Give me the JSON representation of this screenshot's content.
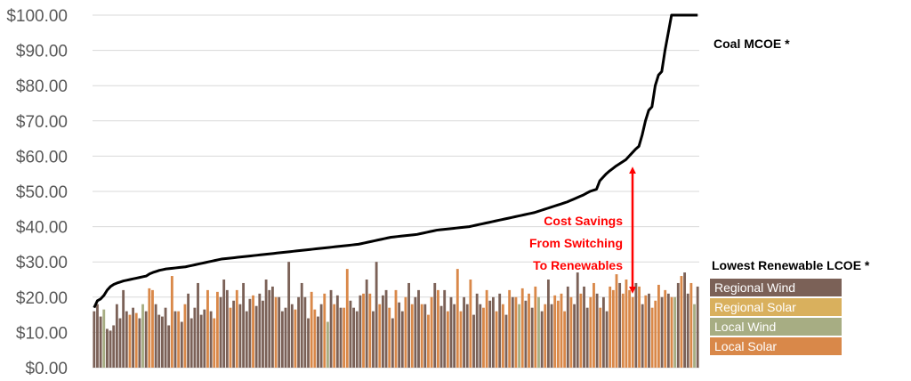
{
  "chart_data": {
    "type": "bar",
    "title": "",
    "xlabel": "",
    "ylabel": "",
    "ylim": [
      0,
      100
    ],
    "y_tick_labels": [
      "$0.00",
      "$10.00",
      "$20.00",
      "$30.00",
      "$40.00",
      "$50.00",
      "$60.00",
      "$70.00",
      "$80.00",
      "$90.00",
      "$100.00"
    ],
    "grid": "horizontal",
    "line_series_label": "Coal MCOE *",
    "bar_legend_title": "Lowest Renewable LCOE *",
    "legend_position": "right",
    "annotation": {
      "lines": [
        "Cost Savings",
        "From Switching",
        "To Renewables"
      ],
      "color": "#ff0000",
      "arrow_from": 22,
      "arrow_to": 56
    },
    "series_colors": {
      "Regional Wind": "#7b6157",
      "Regional Solar": "#d9b05d",
      "Local Wind": "#a7ad83",
      "Local Solar": "#d98849"
    },
    "legend": [
      "Regional Wind",
      "Regional Solar",
      "Local Wind",
      "Local Solar"
    ],
    "bar_values": [
      16.0,
      18.0,
      14.5,
      16.5,
      11.0,
      10.5,
      12.0,
      18.0,
      14.0,
      22.0,
      16.0,
      15.0,
      17.0,
      15.5,
      14.0,
      18.0,
      16.0,
      22.5,
      22.0,
      18.0,
      15.0,
      14.5,
      17.0,
      12.0,
      26.0,
      16.0,
      16.0,
      13.0,
      18.0,
      21.0,
      14.0,
      17.0,
      24.0,
      15.0,
      16.5,
      22.0,
      16.0,
      14.0,
      21.5,
      20.0,
      25.0,
      22.0,
      17.0,
      19.0,
      22.0,
      18.0,
      24.0,
      16.0,
      19.5,
      20.5,
      17.5,
      21.0,
      19.0,
      25.0,
      22.0,
      23.0,
      20.0,
      20.0,
      16.0,
      17.0,
      30.0,
      18.0,
      16.5,
      20.0,
      24.0,
      20.0,
      14.0,
      21.5,
      16.5,
      14.5,
      18.0,
      21.0,
      13.0,
      22.0,
      18.0,
      20.5,
      17.0,
      17.0,
      28.0,
      19.0,
      17.0,
      16.0,
      20.5,
      21.0,
      25.0,
      21.0,
      16.0,
      30.0,
      18.0,
      20.5,
      22.0,
      17.0,
      14.0,
      22.0,
      18.5,
      16.0,
      20.0,
      24.0,
      18.0,
      20.0,
      22.0,
      18.0,
      18.0,
      15.0,
      20.0,
      24.0,
      22.0,
      17.5,
      22.0,
      16.0,
      20.0,
      18.0,
      28.0,
      16.0,
      20.0,
      18.0,
      25.0,
      15.0,
      21.0,
      18.0,
      17.0,
      22.0,
      19.0,
      20.0,
      16.0,
      21.0,
      18.0,
      15.0,
      22.0,
      20.0,
      20.0,
      18.0,
      22.5,
      19.0,
      21.0,
      17.0,
      23.0,
      20.0,
      16.0,
      18.0,
      25.0,
      18.0,
      20.5,
      19.0,
      21.0,
      16.0,
      23.0,
      20.0,
      18.0,
      27.0,
      21.0,
      23.0,
      17.0,
      20.0,
      24.0,
      21.0,
      17.0,
      20.0,
      16.0,
      23.0,
      22.0,
      26.5,
      24.0,
      21.0,
      25.0,
      22.0,
      20.0,
      24.0,
      23.0,
      18.0,
      20.5,
      21.0,
      17.0,
      19.0,
      23.5,
      20.0,
      22.0,
      21.0,
      20.0,
      20.0,
      24.0,
      26.0,
      27.0,
      21.0,
      24.0,
      18.0,
      23.0
    ],
    "bar_types": [
      "Regional Wind",
      "Regional Wind",
      "Regional Wind",
      "Local Wind",
      "Regional Wind",
      "Regional Wind",
      "Regional Wind",
      "Regional Wind",
      "Regional Wind",
      "Regional Wind",
      "Regional Wind",
      "Local Solar",
      "Regional Wind",
      "Local Solar",
      "Regional Wind",
      "Local Wind",
      "Regional Wind",
      "Local Solar",
      "Local Solar",
      "Regional Wind",
      "Regional Wind",
      "Regional Wind",
      "Regional Wind",
      "Regional Wind",
      "Local Solar",
      "Regional Wind",
      "Local Solar",
      "Regional Wind",
      "Local Solar",
      "Regional Wind",
      "Regional Wind",
      "Regional Wind",
      "Regional Wind",
      "Regional Wind",
      "Regional Wind",
      "Local Solar",
      "Regional Wind",
      "Local Solar",
      "Local Solar",
      "Regional Wind",
      "Regional Wind",
      "Regional Wind",
      "Local Solar",
      "Regional Wind",
      "Local Solar",
      "Regional Wind",
      "Regional Wind",
      "Regional Wind",
      "Regional Wind",
      "Local Solar",
      "Regional Wind",
      "Regional Wind",
      "Regional Wind",
      "Regional Wind",
      "Regional Wind",
      "Regional Wind",
      "Local Solar",
      "Regional Wind",
      "Regional Wind",
      "Regional Wind",
      "Regional Wind",
      "Regional Wind",
      "Local Solar",
      "Regional Wind",
      "Regional Wind",
      "Regional Wind",
      "Regional Wind",
      "Local Solar",
      "Local Solar",
      "Regional Wind",
      "Regional Wind",
      "Local Solar",
      "Local Wind",
      "Regional Wind",
      "Local Solar",
      "Regional Wind",
      "Regional Wind",
      "Local Solar",
      "Local Solar",
      "Regional Wind",
      "Regional Wind",
      "Regional Wind",
      "Regional Wind",
      "Local Solar",
      "Regional Wind",
      "Local Solar",
      "Regional Wind",
      "Regional Wind",
      "Local Solar",
      "Regional Wind",
      "Regional Wind",
      "Local Solar",
      "Regional Wind",
      "Local Solar",
      "Regional Wind",
      "Regional Wind",
      "Local Solar",
      "Regional Wind",
      "Local Solar",
      "Regional Wind",
      "Regional Wind",
      "Local Solar",
      "Regional Wind",
      "Local Solar",
      "Local Solar",
      "Regional Wind",
      "Local Solar",
      "Regional Wind",
      "Regional Wind",
      "Local Solar",
      "Regional Wind",
      "Regional Wind",
      "Local Solar",
      "Local Solar",
      "Regional Wind",
      "Regional Wind",
      "Local Solar",
      "Regional Wind",
      "Regional Wind",
      "Regional Wind",
      "Local Solar",
      "Local Solar",
      "Regional Wind",
      "Regional Wind",
      "Local Solar",
      "Regional Wind",
      "Local Solar",
      "Regional Wind",
      "Local Solar",
      "Regional Wind",
      "Local Solar",
      "Local Wind",
      "Local Solar",
      "Regional Wind",
      "Local Solar",
      "Regional Wind",
      "Local Solar",
      "Local Wind",
      "Regional Wind",
      "Local Solar",
      "Regional Wind",
      "Regional Wind",
      "Local Solar",
      "Local Solar",
      "Local Solar",
      "Local Solar",
      "Regional Wind",
      "Local Solar",
      "Regional Wind",
      "Regional Wind",
      "Local Solar",
      "Regional Wind",
      "Regional Wind",
      "Local Solar",
      "Local Solar",
      "Regional Wind",
      "Local Solar",
      "Regional Wind",
      "Regional Wind",
      "Local Solar",
      "Local Solar",
      "Local Solar",
      "Regional Wind",
      "Local Solar",
      "Local Solar",
      "Local Solar",
      "Local Solar",
      "Regional Wind",
      "Local Solar",
      "Regional Wind",
      "Local Solar",
      "Regional Wind",
      "Local Solar",
      "Local Solar",
      "Local Solar",
      "Regional Wind",
      "Local Solar",
      "Regional Wind",
      "Local Solar",
      "Local Wind",
      "Regional Wind",
      "Local Solar",
      "Regional Wind",
      "Regional Wind",
      "Local Solar",
      "Local Wind"
    ],
    "line_values": [
      17.0,
      19.0,
      19.5,
      20.5,
      22.0,
      23.0,
      23.6,
      24.0,
      24.3,
      24.6,
      24.8,
      25.0,
      25.2,
      25.4,
      25.6,
      25.8,
      26.0,
      26.6,
      27.0,
      27.3,
      27.6,
      27.8,
      28.0,
      28.1,
      28.2,
      28.3,
      28.4,
      28.5,
      28.6,
      28.8,
      29.0,
      29.2,
      29.4,
      29.6,
      29.8,
      30.0,
      30.2,
      30.4,
      30.6,
      30.8,
      30.9,
      31.0,
      31.1,
      31.2,
      31.3,
      31.4,
      31.5,
      31.6,
      31.7,
      31.8,
      31.9,
      32.0,
      32.1,
      32.2,
      32.3,
      32.4,
      32.5,
      32.6,
      32.7,
      32.8,
      32.9,
      33.0,
      33.1,
      33.2,
      33.3,
      33.4,
      33.5,
      33.6,
      33.7,
      33.8,
      33.9,
      34.0,
      34.1,
      34.2,
      34.3,
      34.4,
      34.5,
      34.6,
      34.7,
      34.8,
      34.9,
      35.0,
      35.2,
      35.4,
      35.6,
      35.8,
      36.0,
      36.2,
      36.4,
      36.6,
      36.8,
      37.0,
      37.1,
      37.2,
      37.3,
      37.4,
      37.5,
      37.6,
      37.7,
      37.8,
      38.0,
      38.2,
      38.4,
      38.6,
      38.8,
      39.0,
      39.1,
      39.2,
      39.3,
      39.4,
      39.5,
      39.6,
      39.7,
      39.8,
      39.9,
      40.0,
      40.2,
      40.4,
      40.6,
      40.8,
      41.0,
      41.2,
      41.4,
      41.6,
      41.8,
      42.0,
      42.2,
      42.4,
      42.6,
      42.8,
      43.0,
      43.2,
      43.4,
      43.6,
      43.8,
      44.0,
      44.3,
      44.6,
      44.9,
      45.2,
      45.5,
      45.8,
      46.1,
      46.4,
      46.7,
      47.0,
      47.4,
      47.8,
      48.2,
      48.6,
      49.0,
      49.5,
      50.0,
      50.3,
      50.6,
      53.0,
      54.0,
      55.0,
      55.8,
      56.5,
      57.2,
      57.8,
      58.4,
      59.0,
      60.0,
      61.0,
      62.0,
      62.8,
      66.0,
      70.0,
      73.0,
      74.0,
      80.0,
      83.0,
      84.0,
      90.0,
      95.0,
      100.0,
      100.0,
      100.0,
      100.0,
      100.0,
      100.0,
      100.0,
      100.0,
      100.0
    ]
  }
}
